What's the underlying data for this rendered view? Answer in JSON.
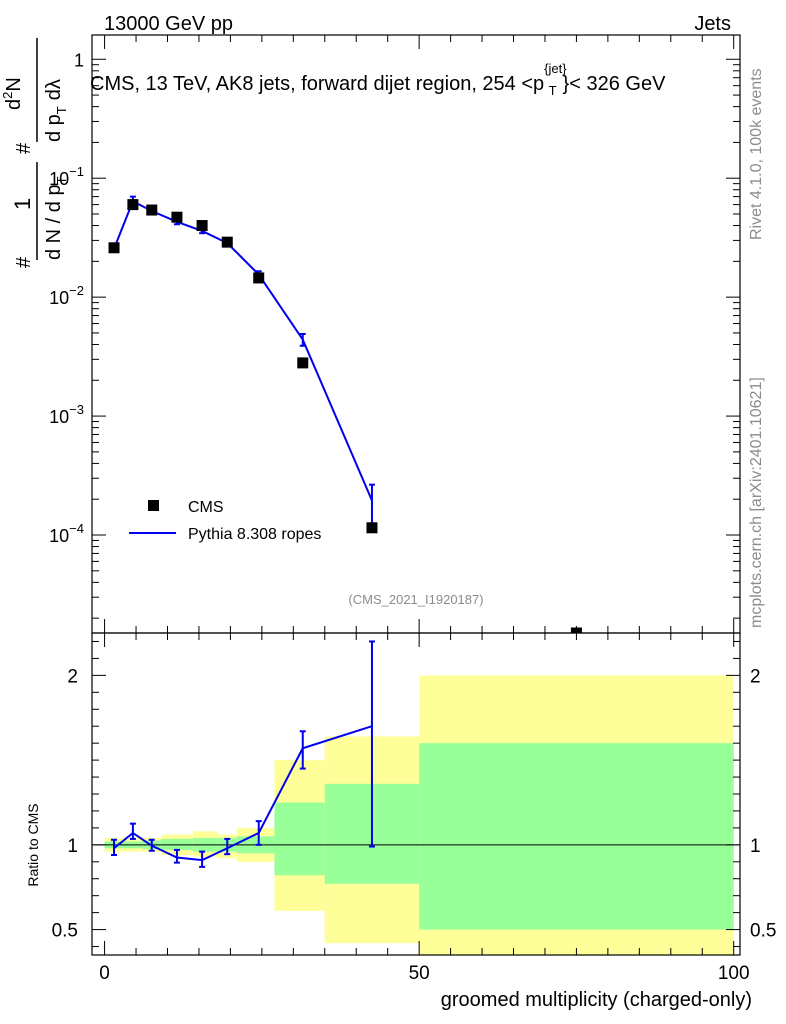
{
  "header": {
    "left": "13000 GeV pp",
    "right": "Jets"
  },
  "side_labels": {
    "rivet": "Rivet 4.1.0,  100k events",
    "mcplots": "mcplots.cern.ch [arXiv:2401.10621]"
  },
  "chart_data": {
    "type": "line",
    "title_prefix": "CMS, 13 TeV, AK8 jets, forward dijet region, 254 <p",
    "title_sup": "{jet}",
    "title_sub": "T",
    "title_suffix": "}< 326 GeV",
    "analysis_label": "(CMS_2021_I1920187)",
    "xlabel": "groomed multiplicity (charged-only)",
    "xlim": [
      -2,
      101
    ],
    "xticks": [
      "0",
      "50",
      "100"
    ],
    "xtick_values": [
      0,
      50,
      100
    ],
    "ylabel_parts": [
      "#",
      "1",
      "d N / d p",
      "T",
      "#",
      "d",
      "2",
      "N",
      "d p",
      "T",
      "dλ"
    ],
    "main_ylim": [
      1.5e-05,
      1.6
    ],
    "main_yticks": [
      {
        "value": 1,
        "mant": "1",
        "exp": ""
      },
      {
        "value": 0.1,
        "mant": "10",
        "exp": "−1"
      },
      {
        "value": 0.01,
        "mant": "10",
        "exp": "−2"
      },
      {
        "value": 0.001,
        "mant": "10",
        "exp": "−3"
      },
      {
        "value": 0.0001,
        "mant": "10",
        "exp": "−4"
      }
    ],
    "legend": [
      {
        "name": "CMS",
        "kind": "marker"
      },
      {
        "name": "Pythia 8.308 ropes",
        "kind": "line",
        "color": "#0000ee"
      }
    ],
    "series": [
      {
        "name": "CMS",
        "kind": "points",
        "color": "#000000",
        "x": [
          1.5,
          4.5,
          7.5,
          11.5,
          15.5,
          19.5,
          24.5,
          31.5,
          42.5,
          75
        ],
        "y": [
          0.026,
          0.06,
          0.054,
          0.047,
          0.04,
          0.029,
          0.0145,
          0.0028,
          0.000115,
          1.3e-05
        ]
      },
      {
        "name": "Pythia 8.308 ropes",
        "kind": "line",
        "color": "#0000ee",
        "x": [
          1.5,
          4.5,
          7.5,
          11.5,
          15.5,
          19.5,
          24.5,
          31.5,
          42.5
        ],
        "y": [
          0.0255,
          0.064,
          0.053,
          0.043,
          0.036,
          0.0285,
          0.0155,
          0.0044,
          0.000195
        ],
        "err_up": [
          0.0265,
          0.07,
          0.0555,
          0.045,
          0.0375,
          0.0295,
          0.0165,
          0.0049,
          0.000265
        ],
        "err_down": [
          0.0245,
          0.058,
          0.0505,
          0.041,
          0.0345,
          0.0275,
          0.0145,
          0.0039,
          0.000115
        ]
      }
    ],
    "ratio": {
      "ylabel": "Ratio to CMS",
      "ylim": [
        0.35,
        2.25
      ],
      "yticks": [
        "0.5",
        "1",
        "2"
      ],
      "ytick_values": [
        0.5,
        1,
        2
      ],
      "x": [
        1.5,
        4.5,
        7.5,
        11.5,
        15.5,
        19.5,
        24.5,
        31.5,
        42.5
      ],
      "y": [
        0.98,
        1.07,
        0.995,
        0.925,
        0.91,
        0.98,
        1.07,
        1.57,
        1.7
      ],
      "err_up": [
        1.03,
        1.125,
        1.03,
        0.97,
        0.96,
        1.035,
        1.14,
        1.67,
        2.2
      ],
      "err_down": [
        0.94,
        1.035,
        0.965,
        0.895,
        0.87,
        0.945,
        1.0,
        1.45,
        0.99
      ],
      "bands": [
        {
          "x0": 0,
          "x1": 3,
          "g_lo": 0.98,
          "g_hi": 1.02,
          "y_lo": 0.96,
          "y_hi": 1.04
        },
        {
          "x0": 3,
          "x1": 6,
          "g_lo": 0.98,
          "g_hi": 1.02,
          "y_lo": 0.96,
          "y_hi": 1.04
        },
        {
          "x0": 6,
          "x1": 9,
          "g_lo": 0.975,
          "g_hi": 1.025,
          "y_lo": 0.96,
          "y_hi": 1.04
        },
        {
          "x0": 9,
          "x1": 14,
          "g_lo": 0.97,
          "g_hi": 1.035,
          "y_lo": 0.94,
          "y_hi": 1.06
        },
        {
          "x0": 14,
          "x1": 18,
          "g_lo": 0.96,
          "g_hi": 1.04,
          "y_lo": 0.93,
          "y_hi": 1.08
        },
        {
          "x0": 18,
          "x1": 21,
          "g_lo": 0.96,
          "g_hi": 1.04,
          "y_lo": 0.92,
          "y_hi": 1.06
        },
        {
          "x0": 21,
          "x1": 27,
          "g_lo": 0.95,
          "g_hi": 1.05,
          "y_lo": 0.9,
          "y_hi": 1.1
        },
        {
          "x0": 27,
          "x1": 35,
          "g_lo": 0.82,
          "g_hi": 1.25,
          "y_lo": 0.61,
          "y_hi": 1.5
        },
        {
          "x0": 35,
          "x1": 50,
          "g_lo": 0.77,
          "g_hi": 1.36,
          "y_lo": 0.42,
          "y_hi": 1.64
        },
        {
          "x0": 50,
          "x1": 100,
          "g_lo": 0.5,
          "g_hi": 1.6,
          "y_lo": 0.35,
          "y_hi": 2.0
        }
      ]
    }
  }
}
